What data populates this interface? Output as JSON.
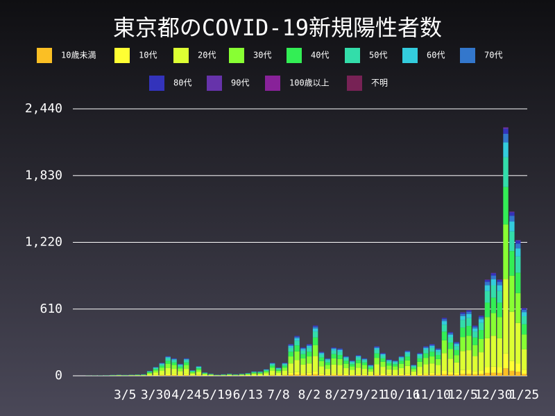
{
  "chart_data": {
    "type": "stacked_bar",
    "title": "東京都のCOVID-19新規陽性者数",
    "categories": [
      null,
      null,
      null,
      null,
      null,
      null,
      null,
      null,
      "3/5",
      null,
      null,
      null,
      null,
      "3/30",
      null,
      null,
      null,
      null,
      "4/24",
      null,
      null,
      null,
      null,
      "5/19",
      null,
      null,
      null,
      null,
      "6/13",
      null,
      null,
      null,
      null,
      "7/8",
      null,
      null,
      null,
      null,
      "8/2",
      null,
      null,
      null,
      null,
      "8/27",
      null,
      null,
      null,
      null,
      "9/21",
      null,
      null,
      null,
      null,
      "10/16",
      null,
      null,
      null,
      null,
      "11/10",
      null,
      null,
      null,
      null,
      "12/5",
      null,
      null,
      null,
      null,
      "12/30",
      null,
      null,
      null,
      null,
      "1/25"
    ],
    "series": [
      {
        "name": "10歳未満",
        "color": "#fbbf24",
        "values": [
          0,
          0,
          0,
          0,
          0,
          0,
          0,
          0,
          0,
          0,
          0,
          0,
          1,
          2,
          4,
          5,
          5,
          3,
          5,
          2,
          3,
          1,
          1,
          0,
          0,
          1,
          0,
          1,
          1,
          1,
          1,
          2,
          4,
          2,
          4,
          9,
          11,
          8,
          9,
          14,
          7,
          5,
          8,
          8,
          5,
          4,
          6,
          5,
          3,
          8,
          6,
          5,
          4,
          5,
          7,
          3,
          6,
          8,
          9,
          8,
          16,
          12,
          9,
          17,
          18,
          14,
          17,
          26,
          28,
          26,
          68,
          45,
          37,
          19
        ]
      },
      {
        "name": "10代",
        "color": "#ffff33",
        "values": [
          0,
          0,
          0,
          0,
          0,
          0,
          0,
          1,
          0,
          1,
          1,
          1,
          3,
          5,
          7,
          11,
          10,
          7,
          10,
          3,
          5,
          2,
          1,
          1,
          1,
          1,
          1,
          1,
          2,
          2,
          2,
          4,
          7,
          4,
          7,
          17,
          22,
          16,
          17,
          28,
          13,
          10,
          16,
          15,
          11,
          8,
          11,
          10,
          6,
          16,
          13,
          9,
          8,
          11,
          14,
          6,
          13,
          16,
          17,
          15,
          32,
          24,
          19,
          35,
          36,
          28,
          33,
          53,
          56,
          53,
          136,
          90,
          74,
          37
        ]
      },
      {
        "name": "20代",
        "color": "#ddff33",
        "values": [
          0,
          0,
          0,
          0,
          1,
          1,
          2,
          3,
          2,
          3,
          3,
          4,
          13,
          24,
          36,
          54,
          48,
          33,
          48,
          15,
          27,
          9,
          6,
          3,
          4,
          6,
          4,
          6,
          7,
          12,
          12,
          18,
          36,
          23,
          36,
          87,
          110,
          78,
          87,
          138,
          66,
          48,
          78,
          75,
          54,
          42,
          57,
          48,
          30,
          81,
          63,
          45,
          42,
          54,
          69,
          30,
          63,
          81,
          87,
          75,
          159,
          120,
          93,
          174,
          180,
          138,
          165,
          264,
          282,
          264,
          681,
          450,
          372,
          186
        ]
      },
      {
        "name": "30代",
        "color": "#88ff33",
        "values": [
          0,
          0,
          0,
          1,
          0,
          1,
          2,
          2,
          2,
          2,
          3,
          3,
          10,
          18,
          26,
          40,
          35,
          24,
          35,
          11,
          20,
          7,
          4,
          2,
          3,
          4,
          3,
          4,
          5,
          9,
          9,
          13,
          26,
          16,
          26,
          64,
          80,
          57,
          64,
          101,
          48,
          35,
          57,
          55,
          40,
          31,
          42,
          35,
          22,
          59,
          46,
          33,
          31,
          40,
          51,
          22,
          46,
          59,
          64,
          55,
          117,
          88,
          68,
          128,
          132,
          101,
          121,
          194,
          207,
          194,
          499,
          330,
          273,
          136
        ]
      },
      {
        "name": "40代",
        "color": "#33ee55",
        "values": [
          0,
          0,
          1,
          0,
          1,
          0,
          1,
          1,
          1,
          1,
          2,
          2,
          7,
          12,
          18,
          27,
          24,
          16,
          24,
          7,
          13,
          4,
          3,
          1,
          2,
          3,
          2,
          3,
          4,
          6,
          6,
          9,
          18,
          11,
          18,
          43,
          55,
          39,
          43,
          69,
          33,
          24,
          39,
          37,
          27,
          21,
          28,
          24,
          15,
          41,
          31,
          22,
          21,
          27,
          34,
          15,
          31,
          41,
          43,
          37,
          80,
          60,
          46,
          87,
          90,
          69,
          82,
          132,
          141,
          132,
          341,
          225,
          186,
          93
        ]
      },
      {
        "name": "50代",
        "color": "#33ddaa",
        "values": [
          0,
          0,
          0,
          1,
          0,
          1,
          1,
          1,
          1,
          1,
          1,
          2,
          5,
          10,
          14,
          22,
          19,
          13,
          19,
          6,
          11,
          4,
          2,
          1,
          2,
          2,
          2,
          2,
          3,
          5,
          5,
          7,
          14,
          9,
          14,
          35,
          44,
          31,
          35,
          55,
          26,
          19,
          31,
          30,
          22,
          17,
          23,
          19,
          12,
          32,
          25,
          18,
          17,
          22,
          28,
          12,
          25,
          32,
          35,
          30,
          64,
          48,
          37,
          70,
          72,
          55,
          66,
          106,
          113,
          106,
          272,
          180,
          149,
          74
        ]
      },
      {
        "name": "60代",
        "color": "#33ccdd",
        "values": [
          0,
          0,
          0,
          0,
          1,
          1,
          1,
          1,
          1,
          1,
          1,
          1,
          3,
          5,
          7,
          11,
          10,
          7,
          10,
          3,
          5,
          2,
          1,
          1,
          1,
          1,
          1,
          1,
          1,
          2,
          2,
          4,
          7,
          5,
          7,
          17,
          22,
          16,
          17,
          28,
          13,
          10,
          16,
          15,
          11,
          8,
          11,
          10,
          6,
          16,
          13,
          9,
          8,
          11,
          14,
          6,
          13,
          16,
          17,
          15,
          32,
          24,
          19,
          35,
          36,
          28,
          33,
          53,
          56,
          53,
          136,
          90,
          74,
          37
        ]
      },
      {
        "name": "70代",
        "color": "#3377cc",
        "values": [
          0,
          0,
          0,
          0,
          0,
          0,
          1,
          1,
          1,
          1,
          1,
          1,
          2,
          3,
          4,
          6,
          5,
          4,
          5,
          2,
          3,
          1,
          1,
          1,
          1,
          1,
          1,
          1,
          1,
          2,
          2,
          2,
          4,
          3,
          4,
          10,
          13,
          9,
          10,
          16,
          8,
          5,
          9,
          9,
          6,
          5,
          7,
          5,
          4,
          10,
          7,
          5,
          5,
          6,
          8,
          4,
          7,
          10,
          10,
          9,
          18,
          14,
          11,
          20,
          21,
          16,
          19,
          31,
          33,
          31,
          79,
          53,
          43,
          22
        ]
      },
      {
        "name": "80代",
        "color": "#3333bb",
        "values": [
          0,
          0,
          0,
          0,
          0,
          0,
          0,
          0,
          0,
          0,
          0,
          1,
          1,
          1,
          3,
          3,
          3,
          2,
          3,
          1,
          2,
          0,
          1,
          0,
          1,
          1,
          1,
          1,
          1,
          1,
          1,
          1,
          3,
          2,
          3,
          6,
          7,
          5,
          6,
          9,
          4,
          3,
          5,
          5,
          3,
          3,
          4,
          3,
          2,
          5,
          4,
          3,
          3,
          3,
          4,
          2,
          4,
          5,
          6,
          5,
          10,
          8,
          6,
          11,
          12,
          9,
          11,
          17,
          19,
          17,
          45,
          30,
          25,
          12
        ]
      },
      {
        "name": "90代",
        "color": "#6633aa",
        "values": [
          0,
          0,
          0,
          0,
          0,
          0,
          0,
          0,
          0,
          0,
          0,
          0,
          0,
          0,
          1,
          1,
          1,
          1,
          1,
          0,
          1,
          0,
          0,
          0,
          0,
          0,
          0,
          0,
          0,
          0,
          0,
          0,
          1,
          0,
          1,
          2,
          1,
          1,
          2,
          2,
          2,
          1,
          1,
          1,
          1,
          1,
          1,
          1,
          0,
          2,
          2,
          1,
          1,
          1,
          1,
          0,
          2,
          2,
          2,
          1,
          2,
          2,
          2,
          3,
          3,
          2,
          3,
          4,
          5,
          4,
          13,
          7,
          7,
          4
        ]
      },
      {
        "name": "100歳以上",
        "color": "#882299",
        "values": [
          0,
          0,
          0,
          0,
          0,
          0,
          0,
          0,
          0,
          0,
          0,
          0,
          0,
          0,
          0,
          0,
          0,
          0,
          0,
          0,
          0,
          0,
          0,
          0,
          0,
          0,
          0,
          0,
          0,
          0,
          0,
          0,
          0,
          0,
          0,
          0,
          0,
          0,
          0,
          0,
          0,
          0,
          0,
          0,
          0,
          0,
          0,
          0,
          0,
          0,
          0,
          0,
          0,
          0,
          0,
          0,
          0,
          0,
          0,
          0,
          0,
          0,
          0,
          0,
          0,
          0,
          0,
          0,
          0,
          0,
          1,
          0,
          0,
          0
        ]
      },
      {
        "name": "不明",
        "color": "#772255",
        "values": [
          0,
          0,
          0,
          0,
          0,
          0,
          0,
          0,
          0,
          0,
          0,
          0,
          0,
          0,
          0,
          0,
          0,
          0,
          0,
          0,
          0,
          0,
          0,
          0,
          0,
          0,
          0,
          0,
          0,
          0,
          0,
          0,
          0,
          0,
          0,
          0,
          0,
          0,
          0,
          0,
          0,
          0,
          0,
          0,
          0,
          0,
          0,
          0,
          0,
          0,
          0,
          0,
          0,
          0,
          0,
          0,
          0,
          0,
          0,
          0,
          0,
          0,
          0,
          0,
          0,
          0,
          0,
          1,
          0,
          0,
          1,
          1,
          0,
          0
        ]
      }
    ],
    "ylim": [
      0,
      2440
    ],
    "yticks": [
      0,
      {
        "value": 610,
        "label": "610"
      },
      {
        "value": 1220,
        "label": "1,220"
      },
      {
        "value": 1830,
        "label": "1,830"
      },
      {
        "value": 2440,
        "label": "2,440"
      }
    ],
    "grid": true
  }
}
